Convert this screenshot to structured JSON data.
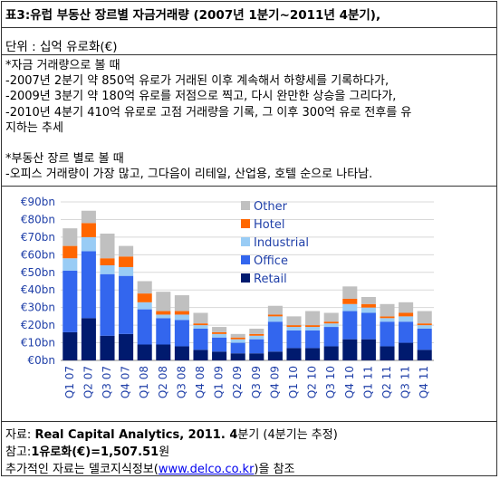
{
  "header": {
    "title": "표3:유럽 부동산 장르별 자금거래량 (2007년 1분기~2011년 4분기),",
    "unit": "단위 : 십억 유로화(€)"
  },
  "notes": {
    "lines": [
      "*자금 거래량으로 볼 때",
      "-2007년 2분기 약 850억 유로가 거래된 이후 계속해서 하향세를 기록하다가,",
      "-2009년 3분기 약 180억 유로를 저점으로 찍고, 다시 완만한 상승을 그리다가,",
      "-2010년 4분기 410억 유로로 고점 거래량을 기록, 그 이후 300억 유로 전후를 유",
      "지하는 추세",
      "",
      "*부동산 장르 별로 볼 때",
      "-오피스 거래량이 가장 많고, 그다음이 리테일, 산업용, 호텔 순으로 나타남."
    ]
  },
  "footer": {
    "source_prefix": "자료:",
    "source_bold": "Real Capital Analytics, 2011. 4",
    "source_suffix": "분기 (4분기는 추정)",
    "ref_prefix": "참고:",
    "ref_bold": "1유로화(€)=1,507.51",
    "ref_suffix": "원",
    "more_prefix": "추가적인 자료는 델코지식정보(",
    "more_link": "www.delco.co.kr",
    "more_suffix": ")을 참조"
  },
  "chart_data": {
    "type": "bar",
    "stacked": true,
    "categories": [
      "Q1 07",
      "Q2 07",
      "Q3 07",
      "Q4 07",
      "Q1 08",
      "Q2 08",
      "Q3 08",
      "Q4 08",
      "Q1 09",
      "Q2 09",
      "Q3 09",
      "Q4 09",
      "Q1 10",
      "Q2 10",
      "Q3 10",
      "Q4 10",
      "Q1 11",
      "Q2 11",
      "Q3 11",
      "Q4 11"
    ],
    "series": [
      {
        "name": "Retail",
        "color": "#001a6e",
        "values": [
          16,
          24,
          14,
          15,
          9,
          9,
          8,
          6,
          5,
          4,
          4,
          5,
          7,
          7,
          8,
          12,
          12,
          8,
          10,
          6
        ]
      },
      {
        "name": "Office",
        "color": "#3366ee",
        "values": [
          35,
          38,
          35,
          33,
          20,
          15,
          15,
          12,
          8,
          6,
          8,
          17,
          10,
          10,
          11,
          16,
          15,
          14,
          12,
          12
        ]
      },
      {
        "name": "Industrial",
        "color": "#99ccf5",
        "values": [
          7,
          8,
          5,
          5,
          4,
          2,
          3,
          2,
          2,
          2,
          2,
          3,
          2,
          2,
          2,
          4,
          3,
          2,
          3,
          2
        ]
      },
      {
        "name": "Hotel",
        "color": "#ff6600",
        "values": [
          7,
          8,
          4,
          6,
          5,
          2,
          2,
          1,
          1,
          1,
          1,
          1,
          1,
          1,
          1,
          3,
          2,
          1,
          2,
          1
        ]
      },
      {
        "name": "Other",
        "color": "#c0c0c0",
        "values": [
          10,
          7,
          14,
          6,
          7,
          11,
          9,
          6,
          3,
          2,
          3,
          5,
          5,
          8,
          5,
          7,
          4,
          7,
          6,
          7
        ]
      }
    ],
    "legend_order": [
      "Other",
      "Hotel",
      "Industrial",
      "Office",
      "Retail"
    ],
    "y_ticks": [
      "€0bn",
      "€10bn",
      "€20bn",
      "€30bn",
      "€40bn",
      "€50bn",
      "€60bn",
      "€70bn",
      "€80bn",
      "€90bn"
    ],
    "ylim": [
      0,
      90
    ],
    "grid": true,
    "legend_position": "top-right"
  }
}
